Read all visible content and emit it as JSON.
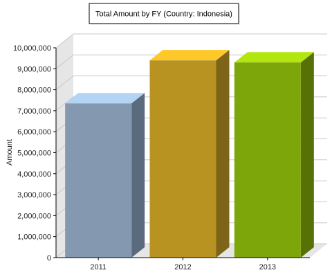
{
  "chart_data": {
    "type": "bar",
    "title": "Total Amount by FY (Country: Indonesia)",
    "xlabel": "",
    "ylabel": "Amount",
    "categories": [
      "2011",
      "2012",
      "2013"
    ],
    "values": [
      7350000,
      9400000,
      9300000
    ],
    "ylim": [
      0,
      10000000
    ],
    "yticks": [
      "0",
      "1,000,000",
      "2,000,000",
      "3,000,000",
      "4,000,000",
      "5,000,000",
      "6,000,000",
      "7,000,000",
      "8,000,000",
      "9,000,000",
      "10,000,000"
    ],
    "grid": true,
    "legend": "none",
    "style": "3d",
    "colors": {
      "bars": [
        {
          "front": "#8499b0",
          "top": "#b3d4f2",
          "side": "#5a6b7d"
        },
        {
          "front": "#b89321",
          "top": "#ffc829",
          "side": "#7d6418"
        },
        {
          "front": "#7da60a",
          "top": "#b3e60f",
          "side": "#577106"
        }
      ],
      "gridline": "#c8c8c8",
      "wall": "#e6e6e6",
      "axis": "#000000"
    }
  }
}
